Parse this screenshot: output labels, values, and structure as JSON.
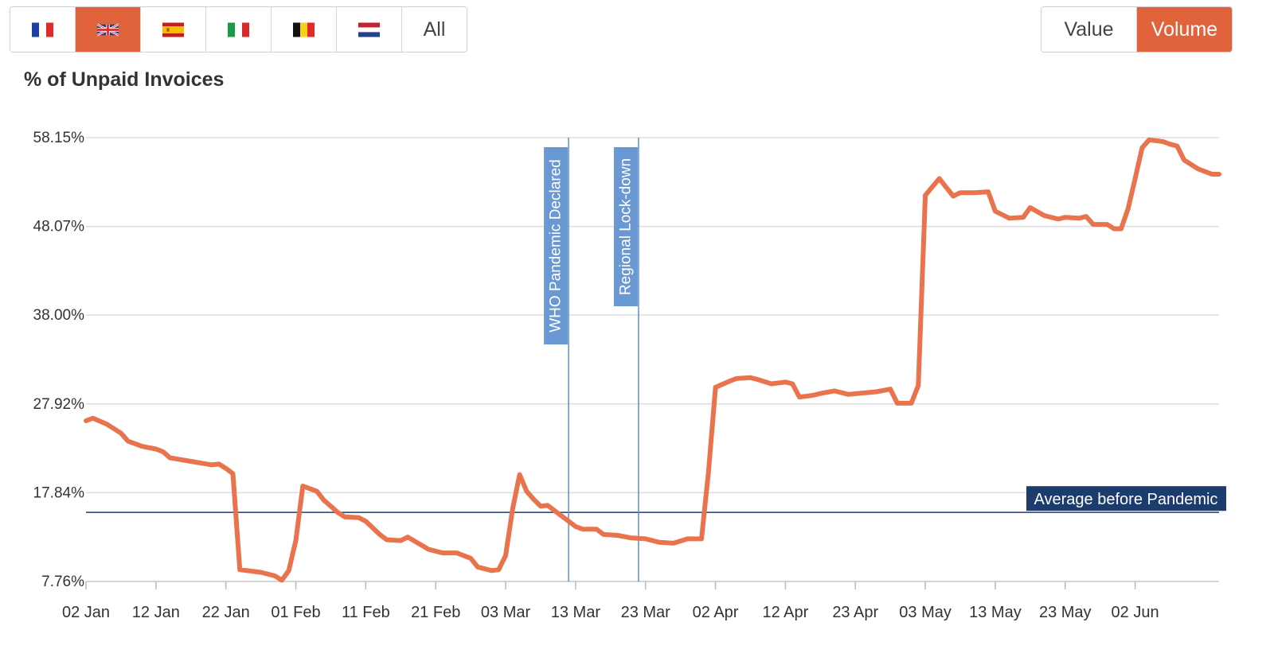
{
  "toolbar": {
    "countries": [
      {
        "name": "France",
        "flag": "fr"
      },
      {
        "name": "United Kingdom",
        "flag": "gb"
      },
      {
        "name": "Spain",
        "flag": "es"
      },
      {
        "name": "Italy",
        "flag": "it"
      },
      {
        "name": "Belgium",
        "flag": "be"
      },
      {
        "name": "Netherlands",
        "flag": "nl"
      }
    ],
    "selected_country": "United Kingdom",
    "all_label": "All",
    "value_label": "Value",
    "volume_label": "Volume",
    "selected_mode": "Volume"
  },
  "colors": {
    "accent": "#e0633b",
    "series": "#e8734d",
    "event_line": "#5b8fd3",
    "event_label_bg": "#6a98d2",
    "average_line": "#1d3c6e",
    "average_label_bg": "#1d3c6e",
    "grid": "#dddddd"
  },
  "chart_data": {
    "type": "line",
    "title": "% of Unpaid Invoices",
    "y_ticks": [
      "7.76%",
      "17.84%",
      "27.92%",
      "38.00%",
      "48.07%",
      "58.15%"
    ],
    "ylim": [
      7.76,
      58.15
    ],
    "x_ticks": [
      "02 Jan",
      "12 Jan",
      "22 Jan",
      "01 Feb",
      "11 Feb",
      "21 Feb",
      "03 Mar",
      "13 Mar",
      "23 Mar",
      "02 Apr",
      "12 Apr",
      "23 Apr",
      "03 May",
      "13 May",
      "23 May",
      "02 Jun"
    ],
    "x_range": [
      "2020-01-02",
      "2020-06-12"
    ],
    "grid": true,
    "series": [
      {
        "values": [
          [
            "2020-01-02",
            26.0
          ],
          [
            "2020-01-03",
            26.3
          ],
          [
            "2020-01-05",
            25.6
          ],
          [
            "2020-01-07",
            24.6
          ],
          [
            "2020-01-08",
            23.7
          ],
          [
            "2020-01-10",
            23.1
          ],
          [
            "2020-01-12",
            22.8
          ],
          [
            "2020-01-13",
            22.5
          ],
          [
            "2020-01-14",
            21.8
          ],
          [
            "2020-01-17",
            21.4
          ],
          [
            "2020-01-20",
            21.0
          ],
          [
            "2020-01-21",
            21.1
          ],
          [
            "2020-01-22",
            20.6
          ],
          [
            "2020-01-23",
            20.0
          ],
          [
            "2020-01-24",
            9.1
          ],
          [
            "2020-01-27",
            8.8
          ],
          [
            "2020-01-29",
            8.4
          ],
          [
            "2020-01-30",
            7.9
          ],
          [
            "2020-01-31",
            9.0
          ],
          [
            "2020-02-01",
            12.4
          ],
          [
            "2020-02-02",
            18.6
          ],
          [
            "2020-02-04",
            18.0
          ],
          [
            "2020-02-05",
            17.0
          ],
          [
            "2020-02-07",
            15.6
          ],
          [
            "2020-02-08",
            15.1
          ],
          [
            "2020-02-10",
            15.0
          ],
          [
            "2020-02-11",
            14.6
          ],
          [
            "2020-02-13",
            13.1
          ],
          [
            "2020-02-14",
            12.5
          ],
          [
            "2020-02-16",
            12.4
          ],
          [
            "2020-02-17",
            12.8
          ],
          [
            "2020-02-20",
            11.4
          ],
          [
            "2020-02-22",
            11.0
          ],
          [
            "2020-02-24",
            11.0
          ],
          [
            "2020-02-26",
            10.4
          ],
          [
            "2020-02-27",
            9.4
          ],
          [
            "2020-02-29",
            9.0
          ],
          [
            "2020-03-01",
            9.1
          ],
          [
            "2020-03-02",
            10.7
          ],
          [
            "2020-03-03",
            16.0
          ],
          [
            "2020-03-04",
            19.9
          ],
          [
            "2020-03-05",
            18.0
          ],
          [
            "2020-03-06",
            17.1
          ],
          [
            "2020-03-07",
            16.3
          ],
          [
            "2020-03-08",
            16.4
          ],
          [
            "2020-03-10",
            15.2
          ],
          [
            "2020-03-12",
            14.0
          ],
          [
            "2020-03-13",
            13.7
          ],
          [
            "2020-03-15",
            13.7
          ],
          [
            "2020-03-16",
            13.1
          ],
          [
            "2020-03-18",
            13.0
          ],
          [
            "2020-03-20",
            12.7
          ],
          [
            "2020-03-22",
            12.6
          ],
          [
            "2020-03-24",
            12.2
          ],
          [
            "2020-03-26",
            12.1
          ],
          [
            "2020-03-28",
            12.6
          ],
          [
            "2020-03-30",
            12.6
          ],
          [
            "2020-03-31",
            20.2
          ],
          [
            "2020-04-01",
            29.8
          ],
          [
            "2020-04-03",
            30.5
          ],
          [
            "2020-04-04",
            30.8
          ],
          [
            "2020-04-06",
            30.9
          ],
          [
            "2020-04-07",
            30.7
          ],
          [
            "2020-04-09",
            30.2
          ],
          [
            "2020-04-11",
            30.4
          ],
          [
            "2020-04-12",
            30.2
          ],
          [
            "2020-04-13",
            28.7
          ],
          [
            "2020-04-15",
            28.9
          ],
          [
            "2020-04-16",
            29.1
          ],
          [
            "2020-04-18",
            29.4
          ],
          [
            "2020-04-20",
            29.0
          ],
          [
            "2020-04-24",
            29.3
          ],
          [
            "2020-04-26",
            29.6
          ],
          [
            "2020-04-27",
            28.0
          ],
          [
            "2020-04-29",
            28.0
          ],
          [
            "2020-04-30",
            30.0
          ],
          [
            "2020-05-01",
            51.6
          ],
          [
            "2020-05-03",
            53.5
          ],
          [
            "2020-05-04",
            52.5
          ],
          [
            "2020-05-05",
            51.5
          ],
          [
            "2020-05-06",
            51.9
          ],
          [
            "2020-05-08",
            51.9
          ],
          [
            "2020-05-10",
            52.0
          ],
          [
            "2020-05-11",
            49.8
          ],
          [
            "2020-05-13",
            49.0
          ],
          [
            "2020-05-15",
            49.1
          ],
          [
            "2020-05-16",
            50.2
          ],
          [
            "2020-05-18",
            49.3
          ],
          [
            "2020-05-20",
            48.9
          ],
          [
            "2020-05-21",
            49.1
          ],
          [
            "2020-05-23",
            49.0
          ],
          [
            "2020-05-24",
            49.2
          ],
          [
            "2020-05-25",
            48.3
          ],
          [
            "2020-05-27",
            48.3
          ],
          [
            "2020-05-28",
            47.8
          ],
          [
            "2020-05-29",
            47.8
          ],
          [
            "2020-05-30",
            50.1
          ],
          [
            "2020-05-31",
            53.5
          ],
          [
            "2020-06-01",
            57.0
          ],
          [
            "2020-06-02",
            57.9
          ],
          [
            "2020-06-04",
            57.7
          ],
          [
            "2020-06-05",
            57.4
          ],
          [
            "2020-06-06",
            57.2
          ],
          [
            "2020-06-07",
            55.6
          ],
          [
            "2020-06-09",
            54.6
          ],
          [
            "2020-06-11",
            54.0
          ],
          [
            "2020-06-12",
            54.0
          ]
        ]
      }
    ],
    "events": [
      {
        "date": "2020-03-11",
        "label": "WHO Pandemic Declared"
      },
      {
        "date": "2020-03-21",
        "label": "Regional Lock-down"
      }
    ],
    "reference_line": {
      "value": 15.6,
      "label": "Average before Pandemic"
    }
  }
}
